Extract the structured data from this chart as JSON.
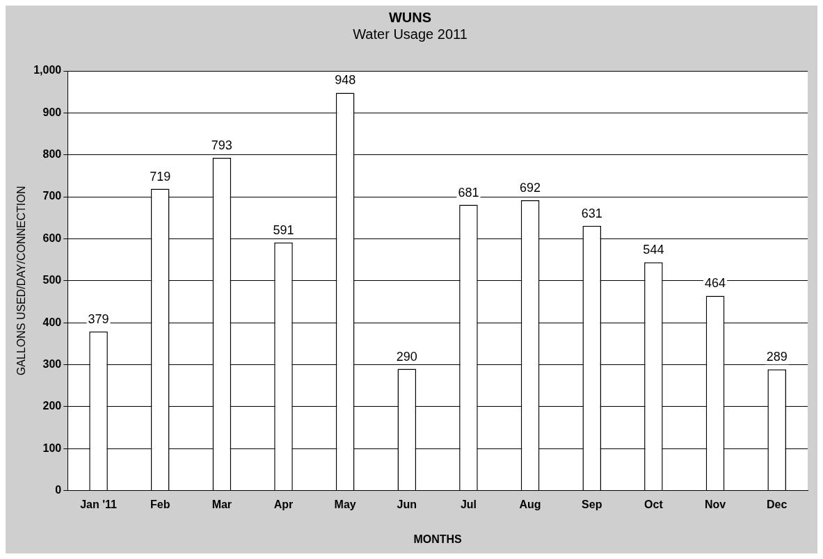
{
  "chart_data": {
    "type": "bar",
    "title": "WUNS",
    "subtitle": "Water Usage 2011",
    "xlabel": "MONTHS",
    "ylabel": "GALLONS USED/DAY/CONNECTION",
    "categories": [
      "Jan '11",
      "Feb",
      "Mar",
      "Apr",
      "May",
      "Jun",
      "Jul",
      "Aug",
      "Sep",
      "Oct",
      "Nov",
      "Dec"
    ],
    "values": [
      379,
      719,
      793,
      591,
      948,
      290,
      681,
      692,
      631,
      544,
      464,
      289
    ],
    "color": "#ffffff",
    "ylim": [
      0,
      1000
    ],
    "yticks": [
      0,
      {
        "value": 100,
        "label": "100"
      },
      {
        "value": 200,
        "label": "200"
      },
      {
        "value": 300,
        "label": "300"
      },
      {
        "value": 400,
        "label": "400"
      },
      {
        "value": 500,
        "label": "500"
      },
      {
        "value": 600,
        "label": "600"
      },
      {
        "value": 700,
        "label": "700"
      },
      {
        "value": 800,
        "label": "800"
      },
      {
        "value": 900,
        "label": "900"
      },
      {
        "value": 1000,
        "label": "1,000"
      }
    ],
    "grid": "y",
    "data_labels": true,
    "legend": false
  }
}
